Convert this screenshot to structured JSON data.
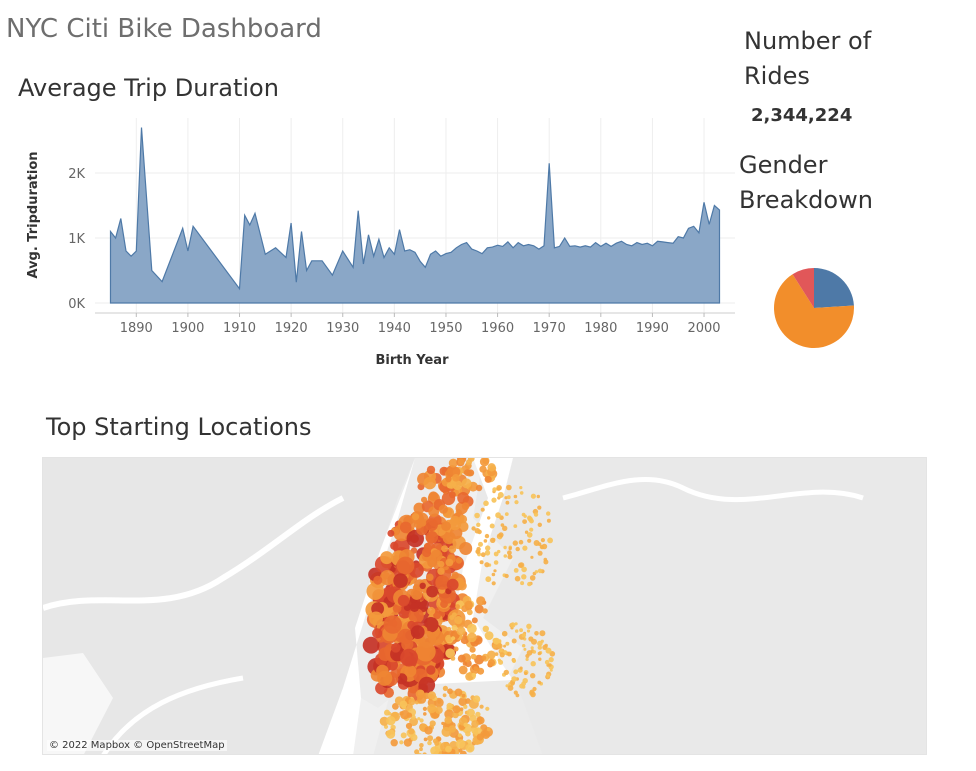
{
  "dashboard": {
    "title": "NYC Citi Bike Dashboard"
  },
  "trip_duration": {
    "title": "Average Trip Duration",
    "color": "#4e79a7"
  },
  "rides": {
    "title": "Number of Rides",
    "value": "2,344,224"
  },
  "gender": {
    "title": "Gender Breakdown",
    "slice_colors": [
      "#4e79a7",
      "#f28e2b",
      "#e15759"
    ]
  },
  "map": {
    "title": "Top Starting Locations",
    "attribution": "© 2022 Mapbox © OpenStreetMap"
  },
  "chart_data": [
    {
      "type": "area",
      "xlabel": "Birth Year",
      "ylabel": "Avg. Tripduration",
      "x_ticks": [
        1890,
        1900,
        1910,
        1920,
        1930,
        1940,
        1950,
        1960,
        1970,
        1980,
        1990,
        2000
      ],
      "y_ticks": [
        "0K",
        "1K",
        "2K"
      ],
      "ylim": [
        0,
        2750
      ],
      "grid": true,
      "x": [
        1885,
        1886,
        1887,
        1888,
        1889,
        1890,
        1891,
        1893,
        1895,
        1899,
        1900,
        1901,
        1910,
        1911,
        1912,
        1913,
        1915,
        1917,
        1919,
        1920,
        1921,
        1922,
        1923,
        1924,
        1926,
        1928,
        1930,
        1932,
        1933,
        1934,
        1935,
        1936,
        1937,
        1938,
        1939,
        1940,
        1941,
        1942,
        1943,
        1944,
        1945,
        1946,
        1947,
        1948,
        1949,
        1950,
        1951,
        1952,
        1953,
        1954,
        1955,
        1956,
        1957,
        1958,
        1959,
        1960,
        1961,
        1962,
        1963,
        1964,
        1965,
        1966,
        1967,
        1968,
        1969,
        1970,
        1971,
        1972,
        1973,
        1974,
        1975,
        1976,
        1977,
        1978,
        1979,
        1980,
        1981,
        1982,
        1983,
        1984,
        1985,
        1986,
        1987,
        1988,
        1989,
        1990,
        1991,
        1992,
        1993,
        1994,
        1995,
        1996,
        1997,
        1998,
        1999,
        2000,
        2001,
        2002,
        2003
      ],
      "y": [
        1100,
        1000,
        1300,
        800,
        720,
        800,
        2700,
        500,
        330,
        1150,
        800,
        1180,
        220,
        1350,
        1200,
        1380,
        750,
        850,
        700,
        1230,
        320,
        1100,
        500,
        650,
        650,
        430,
        800,
        550,
        1420,
        600,
        1050,
        720,
        980,
        700,
        850,
        750,
        1130,
        800,
        820,
        780,
        640,
        550,
        750,
        800,
        720,
        760,
        780,
        850,
        900,
        930,
        830,
        800,
        760,
        850,
        860,
        890,
        870,
        940,
        850,
        930,
        880,
        900,
        880,
        830,
        880,
        2150,
        850,
        870,
        1000,
        870,
        880,
        860,
        880,
        860,
        930,
        870,
        920,
        870,
        920,
        950,
        900,
        880,
        930,
        900,
        920,
        880,
        950,
        940,
        930,
        920,
        1020,
        1000,
        1150,
        1180,
        1080,
        1550,
        1210,
        1500,
        1430
      ]
    },
    {
      "type": "pie",
      "values": [
        24,
        67,
        9
      ]
    }
  ]
}
